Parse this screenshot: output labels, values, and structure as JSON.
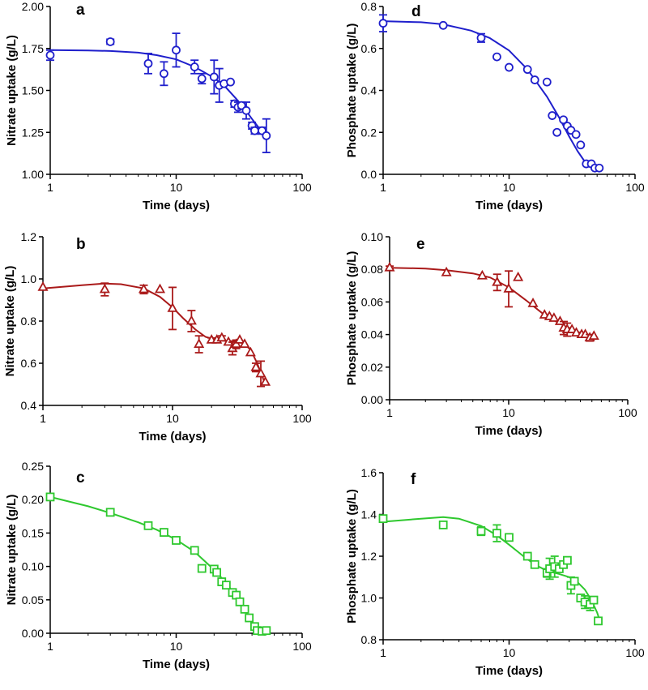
{
  "chart_data": [
    {
      "panel": "a",
      "type": "scatter",
      "xscale": "log",
      "xlabel": "Time (days)",
      "ylabel": "Nitrate uptake (g/L)",
      "xlim": [
        1,
        100
      ],
      "ylim": [
        1.0,
        2.0
      ],
      "xticks": [
        1,
        10,
        100
      ],
      "xtick_labels": [
        "1",
        "10",
        "100"
      ],
      "yticks": [
        1.0,
        1.25,
        1.5,
        1.75,
        2.0
      ],
      "ytick_labels": [
        "1.00",
        "1.25",
        "1.50",
        "1.75",
        "2.00"
      ],
      "color": "#1f1fcc",
      "marker": "circle",
      "points": [
        {
          "x": 1,
          "y": 1.71,
          "err": 0.03
        },
        {
          "x": 3,
          "y": 1.79,
          "err": 0.015
        },
        {
          "x": 6,
          "y": 1.66,
          "err": 0.06
        },
        {
          "x": 8,
          "y": 1.6,
          "err": 0.07
        },
        {
          "x": 10,
          "y": 1.74,
          "err": 0.1
        },
        {
          "x": 14,
          "y": 1.64,
          "err": 0.04
        },
        {
          "x": 16,
          "y": 1.57,
          "err": 0.03
        },
        {
          "x": 20,
          "y": 1.58,
          "err": 0.1
        },
        {
          "x": 22,
          "y": 1.53,
          "err": 0.1
        },
        {
          "x": 24,
          "y": 1.54,
          "err": 0
        },
        {
          "x": 27,
          "y": 1.55,
          "err": 0
        },
        {
          "x": 29,
          "y": 1.42,
          "err": 0.02
        },
        {
          "x": 31,
          "y": 1.4,
          "err": 0.03
        },
        {
          "x": 33,
          "y": 1.41,
          "err": 0.02
        },
        {
          "x": 36,
          "y": 1.38,
          "err": 0.05
        },
        {
          "x": 40,
          "y": 1.29,
          "err": 0.02
        },
        {
          "x": 42,
          "y": 1.26,
          "err": 0.02
        },
        {
          "x": 48,
          "y": 1.26,
          "err": 0.02
        },
        {
          "x": 52,
          "y": 1.23,
          "err": 0.1
        }
      ],
      "fit": {
        "x": [
          1,
          2,
          3,
          5,
          7,
          10,
          14,
          20,
          25,
          30,
          35,
          40,
          45,
          52
        ],
        "y": [
          1.74,
          1.738,
          1.735,
          1.725,
          1.71,
          1.685,
          1.64,
          1.575,
          1.515,
          1.45,
          1.39,
          1.33,
          1.28,
          1.225
        ]
      }
    },
    {
      "panel": "b",
      "type": "scatter",
      "xscale": "log",
      "xlabel": "Time (days)",
      "ylabel": "Nitrate uptake (g/L)",
      "xlim": [
        1,
        100
      ],
      "ylim": [
        0.4,
        1.2
      ],
      "xticks": [
        1,
        10,
        100
      ],
      "xtick_labels": [
        "1",
        "10",
        "100"
      ],
      "yticks": [
        0.4,
        0.6,
        0.8,
        1.0,
        1.2
      ],
      "ytick_labels": [
        "0.4",
        "0.6",
        "0.8",
        "1.0",
        "1.2"
      ],
      "color": "#aa1a1a",
      "marker": "triangle",
      "points": [
        {
          "x": 1,
          "y": 0.96,
          "err": 0
        },
        {
          "x": 3,
          "y": 0.95,
          "err": 0.03
        },
        {
          "x": 6,
          "y": 0.95,
          "err": 0.02
        },
        {
          "x": 8,
          "y": 0.95,
          "err": 0
        },
        {
          "x": 10,
          "y": 0.86,
          "err": 0.1
        },
        {
          "x": 14,
          "y": 0.8,
          "err": 0.05
        },
        {
          "x": 16,
          "y": 0.69,
          "err": 0.04
        },
        {
          "x": 20,
          "y": 0.71,
          "err": 0.01
        },
        {
          "x": 22,
          "y": 0.71,
          "err": 0
        },
        {
          "x": 24,
          "y": 0.72,
          "err": 0.01
        },
        {
          "x": 27,
          "y": 0.7,
          "err": 0
        },
        {
          "x": 29,
          "y": 0.67,
          "err": 0.03
        },
        {
          "x": 31,
          "y": 0.69,
          "err": 0.02
        },
        {
          "x": 33,
          "y": 0.71,
          "err": 0
        },
        {
          "x": 36,
          "y": 0.69,
          "err": 0
        },
        {
          "x": 40,
          "y": 0.65,
          "err": 0
        },
        {
          "x": 44,
          "y": 0.58,
          "err": 0.02
        },
        {
          "x": 48,
          "y": 0.55,
          "err": 0.06
        },
        {
          "x": 52,
          "y": 0.51,
          "err": 0
        }
      ],
      "fit": {
        "x": [
          1,
          2,
          3,
          4,
          6,
          8,
          10,
          12,
          15,
          18,
          22,
          27,
          30,
          35,
          40,
          45,
          52
        ],
        "y": [
          0.955,
          0.97,
          0.978,
          0.975,
          0.955,
          0.915,
          0.865,
          0.815,
          0.76,
          0.725,
          0.71,
          0.705,
          0.705,
          0.695,
          0.665,
          0.6,
          0.5
        ]
      }
    },
    {
      "panel": "c",
      "type": "scatter",
      "xscale": "log",
      "xlabel": "Time (days)",
      "ylabel": "Nitrate uptake (g/L)",
      "xlim": [
        1,
        100
      ],
      "ylim": [
        0,
        0.25
      ],
      "xticks": [
        1,
        10,
        100
      ],
      "xtick_labels": [
        "1",
        "10",
        "100"
      ],
      "yticks": [
        0,
        0.05,
        0.1,
        0.15,
        0.2,
        0.25
      ],
      "ytick_labels": [
        "0.00",
        "0.05",
        "0.10",
        "0.15",
        "0.20",
        "0.25"
      ],
      "color": "#2ec82e",
      "marker": "square",
      "points": [
        {
          "x": 1,
          "y": 0.204,
          "err": 0
        },
        {
          "x": 3,
          "y": 0.181,
          "err": 0
        },
        {
          "x": 6,
          "y": 0.161,
          "err": 0
        },
        {
          "x": 8,
          "y": 0.151,
          "err": 0
        },
        {
          "x": 10,
          "y": 0.139,
          "err": 0
        },
        {
          "x": 14,
          "y": 0.124,
          "err": 0
        },
        {
          "x": 16,
          "y": 0.097,
          "err": 0
        },
        {
          "x": 20,
          "y": 0.096,
          "err": 0
        },
        {
          "x": 21,
          "y": 0.091,
          "err": 0
        },
        {
          "x": 23,
          "y": 0.077,
          "err": 0
        },
        {
          "x": 25,
          "y": 0.072,
          "err": 0
        },
        {
          "x": 28,
          "y": 0.061,
          "err": 0
        },
        {
          "x": 30,
          "y": 0.057,
          "err": 0
        },
        {
          "x": 32,
          "y": 0.047,
          "err": 0
        },
        {
          "x": 35,
          "y": 0.036,
          "err": 0
        },
        {
          "x": 38,
          "y": 0.023,
          "err": 0
        },
        {
          "x": 42,
          "y": 0.01,
          "err": 0
        },
        {
          "x": 44,
          "y": 0.004,
          "err": 0
        },
        {
          "x": 48,
          "y": 0.003,
          "err": 0
        },
        {
          "x": 52,
          "y": 0.004,
          "err": 0
        }
      ],
      "fit": {
        "x": [
          1,
          2,
          3,
          5,
          7,
          10,
          14,
          20,
          25,
          30,
          35,
          40,
          45,
          50
        ],
        "y": [
          0.204,
          0.19,
          0.18,
          0.166,
          0.155,
          0.14,
          0.122,
          0.095,
          0.075,
          0.055,
          0.035,
          0.015,
          0.004,
          0.001
        ]
      }
    },
    {
      "panel": "d",
      "type": "scatter",
      "xscale": "log",
      "xlabel": "Time (days)",
      "ylabel": "Phosphate uptake (g/L)",
      "xlim": [
        1,
        100
      ],
      "ylim": [
        0,
        0.8
      ],
      "xticks": [
        1,
        10,
        100
      ],
      "xtick_labels": [
        "1",
        "10",
        "100"
      ],
      "yticks": [
        0,
        0.2,
        0.4,
        0.6,
        0.8
      ],
      "ytick_labels": [
        "0.0",
        "0.2",
        "0.4",
        "0.6",
        "0.8"
      ],
      "color": "#1f1fcc",
      "marker": "circle",
      "points": [
        {
          "x": 1,
          "y": 0.72,
          "err": 0.04
        },
        {
          "x": 3,
          "y": 0.71,
          "err": 0
        },
        {
          "x": 6,
          "y": 0.65,
          "err": 0.02
        },
        {
          "x": 8,
          "y": 0.56,
          "err": 0
        },
        {
          "x": 10,
          "y": 0.51,
          "err": 0
        },
        {
          "x": 14,
          "y": 0.5,
          "err": 0
        },
        {
          "x": 16,
          "y": 0.45,
          "err": 0
        },
        {
          "x": 20,
          "y": 0.44,
          "err": 0
        },
        {
          "x": 22,
          "y": 0.28,
          "err": 0
        },
        {
          "x": 24,
          "y": 0.2,
          "err": 0
        },
        {
          "x": 27,
          "y": 0.26,
          "err": 0
        },
        {
          "x": 29,
          "y": 0.23,
          "err": 0
        },
        {
          "x": 31,
          "y": 0.21,
          "err": 0
        },
        {
          "x": 34,
          "y": 0.19,
          "err": 0
        },
        {
          "x": 37,
          "y": 0.14,
          "err": 0
        },
        {
          "x": 41,
          "y": 0.05,
          "err": 0
        },
        {
          "x": 45,
          "y": 0.05,
          "err": 0
        },
        {
          "x": 48,
          "y": 0.03,
          "err": 0
        },
        {
          "x": 52,
          "y": 0.03,
          "err": 0
        }
      ],
      "fit": {
        "x": [
          1,
          2,
          3,
          5,
          7,
          10,
          14,
          20,
          25,
          30,
          35,
          40,
          45,
          50
        ],
        "y": [
          0.73,
          0.725,
          0.715,
          0.685,
          0.65,
          0.59,
          0.5,
          0.37,
          0.27,
          0.18,
          0.11,
          0.06,
          0.035,
          0.025
        ]
      }
    },
    {
      "panel": "e",
      "type": "scatter",
      "xscale": "log",
      "xlabel": "Time (days)",
      "ylabel": "Phosphate uptake (g/L)",
      "xlim": [
        1,
        100
      ],
      "ylim": [
        0,
        0.1
      ],
      "xticks": [
        1,
        10,
        100
      ],
      "xtick_labels": [
        "1",
        "10",
        "100"
      ],
      "yticks": [
        0,
        0.02,
        0.04,
        0.06,
        0.08,
        0.1
      ],
      "ytick_labels": [
        "0.00",
        "0.02",
        "0.04",
        "0.06",
        "0.08",
        "0.10"
      ],
      "color": "#aa1a1a",
      "marker": "triangle",
      "points": [
        {
          "x": 1,
          "y": 0.081,
          "err": 0.001
        },
        {
          "x": 3,
          "y": 0.078,
          "err": 0
        },
        {
          "x": 6,
          "y": 0.076,
          "err": 0
        },
        {
          "x": 8,
          "y": 0.072,
          "err": 0.005
        },
        {
          "x": 10,
          "y": 0.068,
          "err": 0.011
        },
        {
          "x": 12,
          "y": 0.075,
          "err": 0
        },
        {
          "x": 16,
          "y": 0.059,
          "err": 0
        },
        {
          "x": 20,
          "y": 0.052,
          "err": 0
        },
        {
          "x": 22,
          "y": 0.051,
          "err": 0
        },
        {
          "x": 24,
          "y": 0.05,
          "err": 0
        },
        {
          "x": 27,
          "y": 0.048,
          "err": 0
        },
        {
          "x": 29,
          "y": 0.044,
          "err": 0.004
        },
        {
          "x": 31,
          "y": 0.043,
          "err": 0.004
        },
        {
          "x": 34,
          "y": 0.043,
          "err": 0
        },
        {
          "x": 37,
          "y": 0.041,
          "err": 0
        },
        {
          "x": 41,
          "y": 0.04,
          "err": 0
        },
        {
          "x": 44,
          "y": 0.04,
          "err": 0
        },
        {
          "x": 48,
          "y": 0.038,
          "err": 0.002
        },
        {
          "x": 52,
          "y": 0.039,
          "err": 0
        }
      ],
      "fit": {
        "x": [
          1,
          2,
          3,
          5,
          7,
          10,
          14,
          20,
          25,
          30,
          35,
          40,
          45,
          52
        ],
        "y": [
          0.081,
          0.0805,
          0.0795,
          0.0775,
          0.075,
          0.069,
          0.061,
          0.052,
          0.048,
          0.045,
          0.043,
          0.041,
          0.0395,
          0.0385
        ]
      }
    },
    {
      "panel": "f",
      "type": "scatter",
      "xscale": "log",
      "xlabel": "Time (days)",
      "ylabel": "Phosphate uptake (g/L)",
      "xlim": [
        1,
        100
      ],
      "ylim": [
        0.8,
        1.6
      ],
      "xticks": [
        1,
        10,
        100
      ],
      "xtick_labels": [
        "1",
        "10",
        "100"
      ],
      "yticks": [
        0.8,
        1.0,
        1.2,
        1.4,
        1.6
      ],
      "ytick_labels": [
        "0.8",
        "1.0",
        "1.2",
        "1.4",
        "1.6"
      ],
      "color": "#2ec82e",
      "marker": "square",
      "points": [
        {
          "x": 1,
          "y": 1.38,
          "err": 0
        },
        {
          "x": 3,
          "y": 1.35,
          "err": 0.01
        },
        {
          "x": 6,
          "y": 1.32,
          "err": 0.02
        },
        {
          "x": 8,
          "y": 1.31,
          "err": 0.04
        },
        {
          "x": 10,
          "y": 1.29,
          "err": 0
        },
        {
          "x": 14,
          "y": 1.2,
          "err": 0
        },
        {
          "x": 16,
          "y": 1.16,
          "err": 0
        },
        {
          "x": 20,
          "y": 1.12,
          "err": 0.02
        },
        {
          "x": 21,
          "y": 1.14,
          "err": 0.05
        },
        {
          "x": 23,
          "y": 1.15,
          "err": 0.05
        },
        {
          "x": 25,
          "y": 1.14,
          "err": 0
        },
        {
          "x": 27,
          "y": 1.16,
          "err": 0
        },
        {
          "x": 29,
          "y": 1.18,
          "err": 0
        },
        {
          "x": 31,
          "y": 1.06,
          "err": 0.04
        },
        {
          "x": 33,
          "y": 1.08,
          "err": 0
        },
        {
          "x": 37,
          "y": 1.0,
          "err": 0
        },
        {
          "x": 40,
          "y": 0.98,
          "err": 0.03
        },
        {
          "x": 44,
          "y": 0.97,
          "err": 0.03
        },
        {
          "x": 47,
          "y": 0.99,
          "err": 0
        },
        {
          "x": 51,
          "y": 0.89,
          "err": 0
        }
      ],
      "fit": {
        "x": [
          1,
          2,
          3,
          4,
          6,
          8,
          10,
          13,
          16,
          20,
          25,
          30,
          35,
          40,
          45,
          50,
          52
        ],
        "y": [
          1.365,
          1.38,
          1.387,
          1.38,
          1.345,
          1.3,
          1.255,
          1.2,
          1.16,
          1.13,
          1.115,
          1.1,
          1.075,
          1.04,
          0.99,
          0.93,
          0.9
        ]
      }
    }
  ]
}
